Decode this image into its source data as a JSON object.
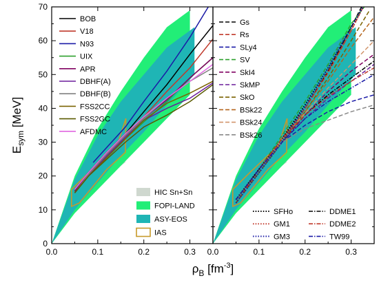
{
  "chart_data": {
    "type": "line",
    "ylabel": {
      "main": "E",
      "sub": "sym",
      "unit": " [MeV]"
    },
    "xlabel": {
      "main": "ρ",
      "sub": "B",
      "unit": " [fm",
      "sup": "-3",
      "close": "]"
    },
    "ylim": [
      0,
      70
    ],
    "yticks": [
      0,
      10,
      20,
      30,
      40,
      50,
      60,
      70
    ],
    "grid": false,
    "panels": [
      {
        "xlim": [
          0,
          0.35
        ],
        "xticks": [
          0.0,
          0.1,
          0.2,
          0.3
        ],
        "tick_labels": [
          "0.0",
          "0.1",
          "0.2",
          "0.3"
        ],
        "legend_position": "top-left",
        "series": [
          {
            "name": "BOB",
            "color": "#000000",
            "dash": "solid",
            "x": [
              0.05,
              0.08,
              0.12,
              0.16,
              0.2,
              0.25,
              0.3,
              0.35
            ],
            "y": [
              16,
              21,
              27,
              32.5,
              39,
              47,
              56,
              64.5
            ]
          },
          {
            "name": "V18",
            "color": "#c0392b",
            "dash": "solid",
            "x": [
              0.05,
              0.08,
              0.12,
              0.16,
              0.2,
              0.25,
              0.3,
              0.35
            ],
            "y": [
              16,
              21,
              27,
              32,
              37.5,
              45,
              52,
              60.5
            ]
          },
          {
            "name": "N93",
            "color": "#1a1aa6",
            "dash": "solid",
            "x": [
              0.09,
              0.12,
              0.16,
              0.2,
              0.25,
              0.3,
              0.34
            ],
            "y": [
              24,
              28.5,
              34.5,
              42,
              51,
              61,
              70
            ]
          },
          {
            "name": "UIX",
            "color": "#2ca02c",
            "dash": "solid",
            "x": [
              0.05,
              0.08,
              0.12,
              0.16,
              0.2,
              0.25,
              0.3,
              0.35
            ],
            "y": [
              15.5,
              20.5,
              26,
              31,
              36,
              42,
              49,
              55
            ]
          },
          {
            "name": "APR",
            "color": "#800060",
            "dash": "solid",
            "x": [
              0.05,
              0.08,
              0.12,
              0.16,
              0.2,
              0.25,
              0.3,
              0.35
            ],
            "y": [
              15.5,
              20.5,
              26.5,
              32,
              37,
              42.5,
              49,
              55
            ]
          },
          {
            "name": "DBHF(A)",
            "color": "#6a1b9a",
            "dash": "solid",
            "x": [
              0.05,
              0.08,
              0.12,
              0.16,
              0.2,
              0.25,
              0.3,
              0.35
            ],
            "y": [
              15,
              20,
              26,
              31.5,
              36.5,
              40,
              43,
              47.5
            ]
          },
          {
            "name": "DBHF(B)",
            "color": "#808080",
            "dash": "solid",
            "x": [
              0.05,
              0.08,
              0.12,
              0.16,
              0.2,
              0.25,
              0.3,
              0.35
            ],
            "y": [
              15,
              20.5,
              26.5,
              32,
              37,
              43,
              48,
              52
            ]
          },
          {
            "name": "FSS2CC",
            "color": "#7a6200",
            "dash": "solid",
            "x": [
              0.05,
              0.08,
              0.12,
              0.16,
              0.2,
              0.25,
              0.3,
              0.35
            ],
            "y": [
              15,
              20,
              25.5,
              31,
              36.5,
              41.5,
              44.5,
              48
            ]
          },
          {
            "name": "FSS2GC",
            "color": "#5a5a00",
            "dash": "solid",
            "x": [
              0.05,
              0.08,
              0.12,
              0.16,
              0.2,
              0.25,
              0.3,
              0.35
            ],
            "y": [
              15,
              20,
              25,
              30,
              34.5,
              38,
              42,
              47
            ]
          },
          {
            "name": "AFDMC",
            "color": "#e066e0",
            "dash": "solid",
            "x": [
              0.05,
              0.08,
              0.12,
              0.16,
              0.2,
              0.25,
              0.3,
              0.35
            ],
            "y": [
              16,
              21,
              27,
              32.5,
              37.5,
              43,
              48,
              53
            ]
          }
        ],
        "bands": [
          {
            "name": "HIC Sn+Sn",
            "color": "#cfd8cf",
            "x": [
              0.045,
              0.08,
              0.12,
              0.16,
              0.16,
              0.12,
              0.08,
              0.045
            ],
            "y": [
              11,
              15,
              20,
              24,
              37,
              30,
              23,
              16
            ]
          },
          {
            "name": "FOPI-LAND",
            "color": "#22ee77",
            "x": [
              0,
              0.05,
              0.1,
              0.15,
              0.2,
              0.25,
              0.3,
              0.3,
              0.25,
              0.2,
              0.15,
              0.1,
              0.05,
              0
            ],
            "y": [
              0,
              9,
              16,
              23,
              30,
              37,
              44,
              69,
              64,
              55,
              45,
              34,
              20,
              0
            ]
          },
          {
            "name": "ASY-EOS",
            "color": "#1fb5b5",
            "x": [
              0,
              0.05,
              0.1,
              0.15,
              0.2,
              0.25,
              0.31,
              0.31,
              0.25,
              0.2,
              0.15,
              0.1,
              0.05,
              0
            ],
            "y": [
              0,
              10,
              18,
              26,
              33,
              41,
              50,
              64,
              58,
              50,
              42,
              32,
              19,
              0
            ]
          }
        ],
        "ias": {
          "name": "IAS",
          "color": "#c79a2a",
          "x": [
            0.043,
            0.06,
            0.12,
            0.16,
            0.161,
            0.142,
            0.08,
            0.043
          ],
          "y": [
            11,
            12,
            22,
            27,
            37,
            29,
            21,
            16
          ]
        }
      },
      {
        "xlim": [
          0,
          0.35
        ],
        "xticks": [
          0.0,
          0.1,
          0.2,
          0.3
        ],
        "tick_labels": [
          "0.0",
          "0.1",
          "0.2",
          "0.3"
        ],
        "legend_position": "top-left",
        "series": [
          {
            "name": "Gs",
            "color": "#000000",
            "dash": "dash",
            "x": [
              0.05,
              0.1,
              0.15,
              0.2,
              0.25,
              0.3,
              0.33
            ],
            "y": [
              12,
              22,
              31,
              40,
              51,
              64,
              72
            ]
          },
          {
            "name": "Rs",
            "color": "#c0392b",
            "dash": "dash",
            "x": [
              0.05,
              0.1,
              0.15,
              0.2,
              0.25,
              0.3,
              0.33
            ],
            "y": [
              12,
              22,
              31,
              40,
              50.5,
              63,
              71
            ]
          },
          {
            "name": "SLy4",
            "color": "#1a1aa6",
            "dash": "dash",
            "x": [
              0.05,
              0.1,
              0.15,
              0.2,
              0.25,
              0.3,
              0.35
            ],
            "y": [
              13,
              22,
              30,
              35,
              39,
              42,
              44
            ]
          },
          {
            "name": "SV",
            "color": "#2ca02c",
            "dash": "dash",
            "x": [
              0.05,
              0.1,
              0.15,
              0.2,
              0.25,
              0.3,
              0.34
            ],
            "y": [
              13,
              22,
              32,
              42,
              53,
              65,
              72
            ]
          },
          {
            "name": "SkI4",
            "color": "#800060",
            "dash": "dash",
            "x": [
              0.05,
              0.1,
              0.15,
              0.2,
              0.25,
              0.3,
              0.35
            ],
            "y": [
              12,
              21,
              30,
              38,
              45,
              51,
              56
            ]
          },
          {
            "name": "SkMP",
            "color": "#6a1b9a",
            "dash": "dash",
            "x": [
              0.05,
              0.1,
              0.15,
              0.2,
              0.25,
              0.3,
              0.35
            ],
            "y": [
              13,
              22,
              30,
              37,
              43,
              48,
              53
            ]
          },
          {
            "name": "SkO",
            "color": "#7a6200",
            "dash": "dash",
            "x": [
              0.05,
              0.1,
              0.15,
              0.2,
              0.25,
              0.3,
              0.34
            ],
            "y": [
              12,
              21,
              30,
              39,
              49,
              60,
              69
            ]
          },
          {
            "name": "BSk22",
            "color": "#b5651d",
            "dash": "dash",
            "x": [
              0.05,
              0.1,
              0.15,
              0.2,
              0.25,
              0.3,
              0.35
            ],
            "y": [
              13,
              22,
              31,
              39,
              48,
              58,
              67
            ]
          },
          {
            "name": "BSk24",
            "color": "#d2956b",
            "dash": "dash",
            "x": [
              0.05,
              0.1,
              0.15,
              0.2,
              0.25,
              0.3,
              0.35
            ],
            "y": [
              13,
              22,
              31,
              38.5,
              46,
              53,
              60
            ]
          },
          {
            "name": "BSk26",
            "color": "#888888",
            "dash": "dash",
            "x": [
              0.05,
              0.1,
              0.15,
              0.2,
              0.25,
              0.3,
              0.35
            ],
            "y": [
              13,
              22,
              30,
              34,
              36.5,
              39,
              41
            ]
          },
          {
            "name": "SFHo",
            "color": "#000000",
            "dash": "dot",
            "x": [
              0.05,
              0.1,
              0.15,
              0.2,
              0.25,
              0.3,
              0.33
            ],
            "y": [
              13,
              22,
              31,
              41,
              52,
              64,
              71
            ]
          },
          {
            "name": "GM1",
            "color": "#c0392b",
            "dash": "dot",
            "x": [
              0.05,
              0.1,
              0.15,
              0.2,
              0.25,
              0.3,
              0.33
            ],
            "y": [
              12,
              21,
              30,
              40,
              51,
              63,
              71
            ]
          },
          {
            "name": "GM3",
            "color": "#1a1aa6",
            "dash": "dot",
            "x": [
              0.05,
              0.1,
              0.15,
              0.2,
              0.25,
              0.3,
              0.33
            ],
            "y": [
              12,
              21,
              30,
              40.5,
              52,
              64,
              71
            ]
          },
          {
            "name": "DDME1",
            "color": "#000000",
            "dash": "dashdot",
            "x": [
              0.05,
              0.1,
              0.15,
              0.2,
              0.25,
              0.3,
              0.35
            ],
            "y": [
              13,
              22,
              31,
              38,
              44,
              49,
              54
            ]
          },
          {
            "name": "DDME2",
            "color": "#c0392b",
            "dash": "dashdot",
            "x": [
              0.05,
              0.1,
              0.15,
              0.2,
              0.25,
              0.3,
              0.35
            ],
            "y": [
              13,
              22,
              31,
              38,
              43.5,
              48,
              52
            ]
          },
          {
            "name": "TW99",
            "color": "#1a1aa6",
            "dash": "dashdot",
            "x": [
              0.05,
              0.1,
              0.15,
              0.2,
              0.25,
              0.3,
              0.35
            ],
            "y": [
              13,
              22,
              30,
              37,
              42,
              46,
              50
            ]
          }
        ],
        "bands": [
          {
            "name": "HIC Sn+Sn",
            "color": "#cfd8cf",
            "x": [
              0.045,
              0.08,
              0.12,
              0.16,
              0.16,
              0.12,
              0.08,
              0.045
            ],
            "y": [
              11,
              15,
              20,
              24,
              37,
              30,
              23,
              16
            ]
          },
          {
            "name": "FOPI-LAND",
            "color": "#22ee77",
            "x": [
              0,
              0.05,
              0.1,
              0.15,
              0.2,
              0.25,
              0.3,
              0.3,
              0.25,
              0.2,
              0.15,
              0.1,
              0.05,
              0
            ],
            "y": [
              0,
              9,
              16,
              23,
              30,
              37,
              44,
              69,
              64,
              55,
              45,
              34,
              20,
              0
            ]
          },
          {
            "name": "ASY-EOS",
            "color": "#1fb5b5",
            "x": [
              0,
              0.05,
              0.1,
              0.15,
              0.2,
              0.25,
              0.31,
              0.31,
              0.25,
              0.2,
              0.15,
              0.1,
              0.05,
              0
            ],
            "y": [
              0,
              10,
              18,
              26,
              33,
              41,
              50,
              64,
              58,
              50,
              42,
              32,
              19,
              0
            ]
          }
        ],
        "ias": {
          "name": "IAS",
          "color": "#c79a2a",
          "x": [
            0.043,
            0.06,
            0.12,
            0.16,
            0.161,
            0.142,
            0.08,
            0.043
          ],
          "y": [
            11,
            12,
            22,
            27,
            37,
            29,
            21,
            16
          ]
        }
      }
    ],
    "band_legend": [
      {
        "name": "HIC Sn+Sn",
        "color": "#cfd8cf",
        "style": "fill"
      },
      {
        "name": "FOPI-LAND",
        "color": "#22ee77",
        "style": "fill"
      },
      {
        "name": "ASY-EOS",
        "color": "#1fb5b5",
        "style": "fill"
      },
      {
        "name": "IAS",
        "color": "#c79a2a",
        "style": "outline"
      }
    ]
  }
}
